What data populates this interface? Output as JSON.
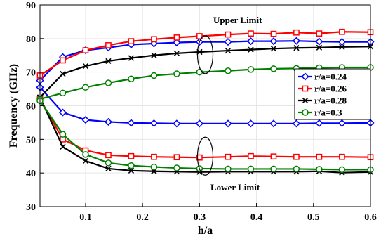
{
  "chart_data": {
    "type": "line",
    "title": "",
    "xlabel": "h/a",
    "ylabel": "Frequency (GHz)",
    "xlim": [
      0.02,
      0.6
    ],
    "ylim": [
      30,
      90
    ],
    "xticks": [
      0.1,
      0.2,
      0.3,
      0.4,
      0.5,
      0.6
    ],
    "yticks": [
      30,
      40,
      50,
      60,
      70,
      80,
      90
    ],
    "grid": true,
    "legend_position": "right",
    "x": [
      0.02,
      0.06,
      0.1,
      0.14,
      0.18,
      0.22,
      0.26,
      0.3,
      0.35,
      0.39,
      0.43,
      0.47,
      0.51,
      0.55,
      0.6
    ],
    "series": [
      {
        "name": "r/a=0.24",
        "color": "#0000ff",
        "marker": "diamond",
        "upper": [
          67.5,
          74.5,
          76.5,
          77.3,
          78.2,
          78.5,
          78.8,
          79.0,
          79.0,
          79.2,
          79.2,
          79.3,
          79.1,
          79.0,
          79.0
        ],
        "lower": [
          65.5,
          58.0,
          55.8,
          55.2,
          54.9,
          54.8,
          54.7,
          54.7,
          54.7,
          54.7,
          54.7,
          54.7,
          54.8,
          54.8,
          54.9
        ]
      },
      {
        "name": "r/a=0.26",
        "color": "#ff0000",
        "marker": "square",
        "upper": [
          69.0,
          73.5,
          76.5,
          78.0,
          79.2,
          79.8,
          80.3,
          80.7,
          81.2,
          81.5,
          81.4,
          81.8,
          81.5,
          82.0,
          81.9
        ],
        "lower": [
          62.0,
          50.0,
          46.7,
          45.3,
          45.0,
          44.8,
          44.7,
          44.6,
          44.8,
          45.0,
          44.9,
          44.8,
          44.8,
          44.8,
          44.7
        ]
      },
      {
        "name": "r/a=0.28",
        "color": "#000000",
        "marker": "x",
        "upper": [
          62.5,
          69.5,
          71.8,
          73.3,
          74.2,
          75.0,
          75.6,
          76.0,
          76.4,
          76.7,
          77.0,
          77.2,
          77.3,
          77.5,
          77.6
        ],
        "lower": [
          62.5,
          47.8,
          43.6,
          41.3,
          40.7,
          40.5,
          40.4,
          40.3,
          40.4,
          40.4,
          40.4,
          40.4,
          40.5,
          40.1,
          40.3
        ]
      },
      {
        "name": "r/a=0.3",
        "color": "#008000",
        "marker": "circle",
        "upper": [
          62.0,
          63.8,
          65.5,
          66.8,
          68.0,
          69.0,
          69.5,
          70.0,
          70.4,
          70.8,
          71.0,
          71.1,
          71.3,
          71.4,
          71.4
        ],
        "lower": [
          61.5,
          51.5,
          45.5,
          43.0,
          42.2,
          41.8,
          41.5,
          41.3,
          41.2,
          41.2,
          41.2,
          41.2,
          41.1,
          41.0,
          41.0
        ]
      }
    ],
    "annotations": {
      "upper": "Upper Limit",
      "lower": "Lower Limit"
    }
  }
}
